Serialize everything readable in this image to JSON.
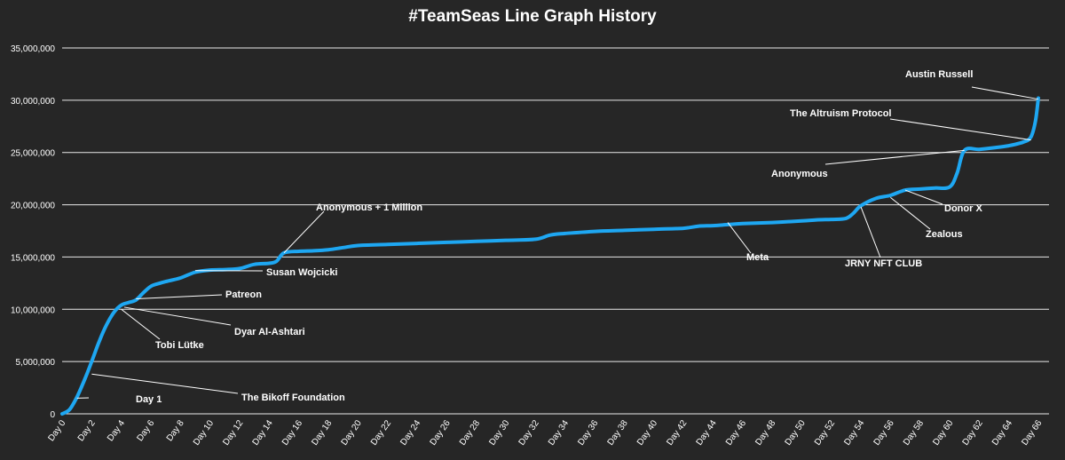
{
  "chart_data": {
    "type": "line",
    "title": "#TeamSeas Line Graph History",
    "xlabel": "",
    "ylabel": "",
    "x_tick_labels": [
      "Day 0",
      "Day 2",
      "Day 4",
      "Day 6",
      "Day 8",
      "Day 10",
      "Day 12",
      "Day 14",
      "Day 16",
      "Day 18",
      "Day 20",
      "Day 22",
      "Day 24",
      "Day 26",
      "Day 28",
      "Day 30",
      "Day 32",
      "Day 34",
      "Day 36",
      "Day 38",
      "Day 40",
      "Day 42",
      "Day 44",
      "Day 46",
      "Day 48",
      "Day 50",
      "Day 52",
      "Day 54",
      "Day 56",
      "Day 58",
      "Day 60",
      "Day 62",
      "Day 64",
      "Day 66"
    ],
    "y_tick_labels": [
      "0",
      "5,000,000",
      "10,000,000",
      "15,000,000",
      "20,000,000",
      "25,000,000",
      "30,000,000",
      "35,000,000"
    ],
    "xlim": [
      0,
      66
    ],
    "ylim": [
      0,
      35000000
    ],
    "grid": "horizontal",
    "line_color": "#1ea7f2",
    "grid_color": "#ffffff",
    "series": [
      {
        "x": [
          0,
          0.5,
          1,
          1.5,
          2,
          2.5,
          3,
          3.5,
          4,
          4.5,
          5,
          5.5,
          6,
          6.5,
          7,
          8,
          9,
          10,
          11,
          12,
          13,
          14,
          14.5,
          15,
          16,
          17,
          18,
          19,
          20,
          22,
          24,
          26,
          28,
          30,
          32,
          33,
          34,
          36,
          38,
          40,
          42,
          43,
          44,
          45,
          46,
          48,
          50,
          51,
          52,
          53,
          53.5,
          54,
          55,
          56,
          57,
          58,
          59,
          60,
          60.5,
          61,
          62,
          63,
          64,
          65,
          65.5,
          65.8,
          66
        ],
        "y": [
          0,
          400000,
          1600000,
          3200000,
          5000000,
          6900000,
          8500000,
          9700000,
          10400000,
          10650000,
          10900000,
          11600000,
          12200000,
          12450000,
          12650000,
          13000000,
          13550000,
          13750000,
          13800000,
          13900000,
          14300000,
          14400000,
          14600000,
          15400000,
          15550000,
          15600000,
          15700000,
          15900000,
          16100000,
          16200000,
          16300000,
          16400000,
          16500000,
          16600000,
          16700000,
          17100000,
          17250000,
          17450000,
          17550000,
          17650000,
          17750000,
          17950000,
          18000000,
          18100000,
          18200000,
          18300000,
          18450000,
          18550000,
          18600000,
          18700000,
          19200000,
          19900000,
          20600000,
          20900000,
          21400000,
          21500000,
          21600000,
          21700000,
          23000000,
          25200000,
          25300000,
          25450000,
          25650000,
          26000000,
          26500000,
          28000000,
          30200000
        ]
      }
    ],
    "annotations": [
      {
        "text": "Day 1",
        "x": 1,
        "y": 1500000
      },
      {
        "text": "The Bikoff Foundation",
        "x": 2,
        "y": 3800000
      },
      {
        "text": "Tobi Lütke",
        "x": 4,
        "y": 10000000
      },
      {
        "text": "Dyar Al-Ashtari",
        "x": 4.2,
        "y": 10200000
      },
      {
        "text": "Patreon",
        "x": 5,
        "y": 11000000
      },
      {
        "text": "Susan Wojcicki",
        "x": 9,
        "y": 13700000
      },
      {
        "text": "Anonymous + 1 Million",
        "x": 15,
        "y": 15400000
      },
      {
        "text": "Meta",
        "x": 45,
        "y": 18300000
      },
      {
        "text": "JRNY NFT CLUB",
        "x": 54,
        "y": 19800000
      },
      {
        "text": "Zealous",
        "x": 56,
        "y": 20700000
      },
      {
        "text": "Donor X",
        "x": 57,
        "y": 21400000
      },
      {
        "text": "Anonymous",
        "x": 61,
        "y": 25200000
      },
      {
        "text": "The Altruism Protocol",
        "x": 65.5,
        "y": 26200000
      },
      {
        "text": "Austin Russell",
        "x": 66,
        "y": 30100000
      }
    ]
  }
}
